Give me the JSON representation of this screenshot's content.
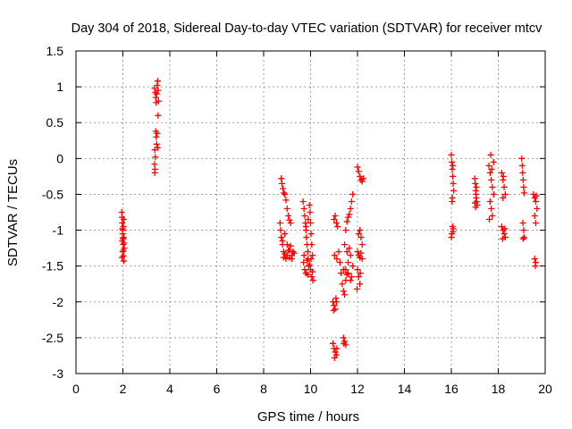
{
  "chart_data": {
    "type": "scatter",
    "title": "Day 304 of 2018, Sidereal Day-to-day VTEC variation (SDTVAR) for receiver mtcv",
    "xlabel": "GPS time / hours",
    "ylabel": "SDTVAR / TECUs",
    "xlim": [
      0,
      20
    ],
    "ylim": [
      -3,
      1.5
    ],
    "xticks": [
      0,
      2,
      4,
      6,
      8,
      10,
      12,
      14,
      16,
      18,
      20
    ],
    "yticks": [
      -3,
      -2.5,
      -2,
      -1.5,
      -1,
      -0.5,
      0,
      0.5,
      1,
      1.5
    ],
    "xtick_labels": [
      "0",
      "2",
      "4",
      "6",
      "8",
      "10",
      "12",
      "14",
      "16",
      "18",
      "20"
    ],
    "ytick_labels": [
      "-3",
      "-2.5",
      "-2",
      "-1.5",
      "-1",
      "-0.5",
      "0",
      "0.5",
      "1",
      "1.5"
    ],
    "grid": true,
    "marker": "plus",
    "series": [
      {
        "name": "SDTVAR",
        "color": "#ff0000",
        "points": [
          [
            1.95,
            -0.75
          ],
          [
            1.96,
            -0.82
          ],
          [
            1.97,
            -0.9
          ],
          [
            1.98,
            -0.98
          ],
          [
            1.99,
            -1.05
          ],
          [
            2.0,
            -1.12
          ],
          [
            2.01,
            -1.2
          ],
          [
            2.02,
            -1.28
          ],
          [
            2.03,
            -1.36
          ],
          [
            2.04,
            -1.43
          ],
          [
            1.97,
            -1.15
          ],
          [
            2.0,
            -1.0
          ],
          [
            2.03,
            -1.1
          ],
          [
            2.06,
            -1.25
          ],
          [
            1.99,
            -1.3
          ],
          [
            2.02,
            -0.95
          ],
          [
            2.05,
            -1.18
          ],
          [
            1.96,
            -1.38
          ],
          [
            2.04,
            -0.85
          ],
          [
            3.35,
            0.98
          ],
          [
            3.38,
            0.92
          ],
          [
            3.4,
            0.85
          ],
          [
            3.42,
            0.78
          ],
          [
            3.44,
            0.9
          ],
          [
            3.46,
            1.02
          ],
          [
            3.48,
            1.08
          ],
          [
            3.5,
            0.95
          ],
          [
            3.52,
            0.8
          ],
          [
            3.5,
            0.6
          ],
          [
            3.4,
            0.38
          ],
          [
            3.42,
            0.3
          ],
          [
            3.44,
            0.2
          ],
          [
            3.36,
            0.12
          ],
          [
            3.38,
            0.02
          ],
          [
            3.35,
            -0.08
          ],
          [
            3.37,
            -0.15
          ],
          [
            3.46,
            0.35
          ],
          [
            3.48,
            0.15
          ],
          [
            3.36,
            -0.2
          ],
          [
            8.75,
            -0.28
          ],
          [
            8.78,
            -0.35
          ],
          [
            8.82,
            -0.42
          ],
          [
            8.86,
            -0.48
          ],
          [
            8.9,
            -0.5
          ],
          [
            8.95,
            -0.58
          ],
          [
            9.0,
            -0.7
          ],
          [
            9.05,
            -0.8
          ],
          [
            9.1,
            -0.86
          ],
          [
            9.15,
            -0.9
          ],
          [
            8.7,
            -0.9
          ],
          [
            8.72,
            -1.0
          ],
          [
            8.75,
            -1.1
          ],
          [
            8.8,
            -1.2
          ],
          [
            8.85,
            -1.3
          ],
          [
            8.9,
            -1.33
          ],
          [
            9.0,
            -1.35
          ],
          [
            9.1,
            -1.38
          ],
          [
            9.2,
            -1.35
          ],
          [
            9.3,
            -1.32
          ],
          [
            8.8,
            -1.15
          ],
          [
            8.9,
            -1.05
          ],
          [
            9.0,
            -1.2
          ],
          [
            9.05,
            -1.28
          ],
          [
            9.15,
            -1.22
          ],
          [
            9.25,
            -1.3
          ],
          [
            8.85,
            -1.38
          ],
          [
            8.95,
            -1.4
          ],
          [
            9.1,
            -1.28
          ],
          [
            9.2,
            -1.4
          ],
          [
            9.68,
            -0.6
          ],
          [
            9.72,
            -0.7
          ],
          [
            9.75,
            -0.8
          ],
          [
            9.78,
            -0.9
          ],
          [
            9.8,
            -1.0
          ],
          [
            9.82,
            -1.1
          ],
          [
            9.85,
            -1.2
          ],
          [
            9.88,
            -1.3
          ],
          [
            9.9,
            -1.4
          ],
          [
            9.92,
            -1.5
          ],
          [
            9.95,
            -0.65
          ],
          [
            9.98,
            -0.75
          ],
          [
            10.0,
            -0.9
          ],
          [
            10.02,
            -1.05
          ],
          [
            10.05,
            -1.2
          ],
          [
            10.08,
            -1.35
          ],
          [
            9.7,
            -1.45
          ],
          [
            9.75,
            -1.55
          ],
          [
            9.8,
            -1.6
          ],
          [
            9.88,
            -1.62
          ],
          [
            9.95,
            -1.48
          ],
          [
            10.0,
            -1.55
          ],
          [
            10.05,
            -1.65
          ],
          [
            10.1,
            -1.7
          ],
          [
            9.72,
            -1.35
          ],
          [
            9.85,
            -1.42
          ],
          [
            10.02,
            -1.4
          ],
          [
            9.9,
            -0.85
          ],
          [
            9.8,
            -0.95
          ],
          [
            10.08,
            -1.58
          ],
          [
            11.0,
            -0.85
          ],
          [
            11.05,
            -0.8
          ],
          [
            11.1,
            -0.9
          ],
          [
            11.15,
            -0.95
          ],
          [
            11.2,
            -1.3
          ],
          [
            11.25,
            -1.45
          ],
          [
            11.3,
            -1.6
          ],
          [
            11.35,
            -1.75
          ],
          [
            11.4,
            -1.85
          ],
          [
            11.45,
            -1.9
          ],
          [
            10.95,
            -2.0
          ],
          [
            11.0,
            -2.05
          ],
          [
            11.05,
            -2.1
          ],
          [
            11.1,
            -2.0
          ],
          [
            10.98,
            -2.12
          ],
          [
            11.08,
            -1.95
          ],
          [
            11.02,
            -1.35
          ],
          [
            11.12,
            -1.4
          ],
          [
            11.45,
            -1.2
          ],
          [
            11.5,
            -1.0
          ],
          [
            11.55,
            -0.88
          ],
          [
            11.6,
            -0.82
          ],
          [
            11.65,
            -0.78
          ],
          [
            11.7,
            -0.7
          ],
          [
            11.75,
            -0.6
          ],
          [
            11.8,
            -0.5
          ],
          [
            11.55,
            -1.3
          ],
          [
            11.65,
            -1.25
          ],
          [
            11.5,
            -1.55
          ],
          [
            11.6,
            -1.6
          ],
          [
            11.7,
            -1.7
          ],
          [
            11.75,
            -1.65
          ],
          [
            11.8,
            -1.5
          ],
          [
            11.6,
            -1.45
          ],
          [
            11.5,
            -1.7
          ],
          [
            11.4,
            -1.55
          ],
          [
            11.7,
            -1.35
          ],
          [
            11.55,
            -1.62
          ],
          [
            12.0,
            -0.12
          ],
          [
            12.05,
            -0.18
          ],
          [
            12.1,
            -0.25
          ],
          [
            12.15,
            -0.3
          ],
          [
            12.2,
            -0.32
          ],
          [
            12.25,
            -0.28
          ],
          [
            12.05,
            -1.05
          ],
          [
            12.1,
            -1.0
          ],
          [
            12.15,
            -1.1
          ],
          [
            12.2,
            -1.2
          ],
          [
            12.0,
            -1.3
          ],
          [
            12.05,
            -1.35
          ],
          [
            12.1,
            -1.38
          ],
          [
            12.15,
            -1.32
          ],
          [
            12.2,
            -1.4
          ],
          [
            12.0,
            -1.55
          ],
          [
            12.05,
            -1.65
          ],
          [
            12.1,
            -1.75
          ],
          [
            11.98,
            -1.82
          ],
          [
            12.12,
            -1.6
          ],
          [
            10.95,
            -2.58
          ],
          [
            11.0,
            -2.65
          ],
          [
            11.05,
            -2.7
          ],
          [
            11.1,
            -2.74
          ],
          [
            11.12,
            -2.65
          ],
          [
            11.02,
            -2.78
          ],
          [
            11.4,
            -2.5
          ],
          [
            11.45,
            -2.55
          ],
          [
            11.5,
            -2.6
          ],
          [
            11.42,
            -2.58
          ],
          [
            16.0,
            0.05
          ],
          [
            16.02,
            -0.05
          ],
          [
            16.04,
            -0.15
          ],
          [
            16.06,
            -0.25
          ],
          [
            16.08,
            -0.35
          ],
          [
            16.1,
            -0.45
          ],
          [
            16.03,
            -0.6
          ],
          [
            16.05,
            -0.95
          ],
          [
            16.07,
            -1.02
          ],
          [
            16.02,
            -1.05
          ],
          [
            16.0,
            -1.1
          ],
          [
            16.08,
            -0.98
          ],
          [
            16.04,
            -0.55
          ],
          [
            16.06,
            -0.1
          ],
          [
            17.0,
            -0.28
          ],
          [
            17.02,
            -0.35
          ],
          [
            17.04,
            -0.45
          ],
          [
            17.06,
            -0.55
          ],
          [
            17.08,
            -0.6
          ],
          [
            17.1,
            -0.65
          ],
          [
            17.03,
            -0.68
          ],
          [
            17.05,
            -0.5
          ],
          [
            17.07,
            -0.4
          ],
          [
            17.01,
            -0.62
          ],
          [
            17.6,
            -0.1
          ],
          [
            17.65,
            -0.2
          ],
          [
            17.7,
            -0.3
          ],
          [
            17.75,
            -0.4
          ],
          [
            17.8,
            -0.5
          ],
          [
            17.65,
            -0.6
          ],
          [
            17.7,
            -0.7
          ],
          [
            17.75,
            -0.8
          ],
          [
            17.62,
            -0.85
          ],
          [
            17.8,
            -0.05
          ],
          [
            17.68,
            0.05
          ],
          [
            17.72,
            -0.15
          ],
          [
            18.15,
            -0.2
          ],
          [
            18.2,
            -0.3
          ],
          [
            18.25,
            -0.4
          ],
          [
            18.3,
            -0.5
          ],
          [
            18.2,
            -0.55
          ],
          [
            18.15,
            -0.95
          ],
          [
            18.2,
            -1.0
          ],
          [
            18.25,
            -1.05
          ],
          [
            18.3,
            -1.1
          ],
          [
            18.18,
            -1.12
          ],
          [
            18.28,
            -0.98
          ],
          [
            18.22,
            -0.25
          ],
          [
            19.0,
            0.0
          ],
          [
            19.02,
            -0.1
          ],
          [
            19.04,
            -0.2
          ],
          [
            19.06,
            -0.3
          ],
          [
            19.08,
            -0.4
          ],
          [
            19.1,
            -0.48
          ],
          [
            19.05,
            -0.9
          ],
          [
            19.08,
            -1.0
          ],
          [
            19.1,
            -1.1
          ],
          [
            19.06,
            -1.12
          ],
          [
            19.5,
            -0.5
          ],
          [
            19.55,
            -0.55
          ],
          [
            19.6,
            -0.6
          ],
          [
            19.65,
            -0.7
          ],
          [
            19.55,
            -0.8
          ],
          [
            19.6,
            -0.9
          ],
          [
            19.55,
            -1.4
          ],
          [
            19.6,
            -1.45
          ],
          [
            19.58,
            -1.5
          ],
          [
            19.62,
            -0.52
          ]
        ]
      }
    ]
  }
}
